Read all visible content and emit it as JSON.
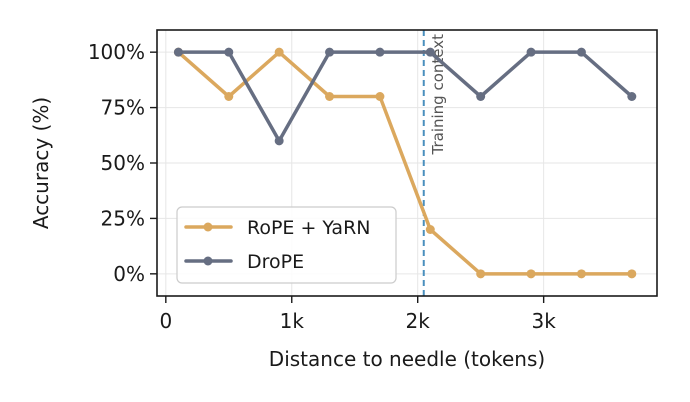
{
  "chart_data": {
    "type": "line",
    "title": "",
    "xlabel": "Distance to needle (tokens)",
    "ylabel": "Accuracy (%)",
    "xlim": [
      -70,
      3900
    ],
    "ylim": [
      -10,
      110
    ],
    "x_ticks": [
      {
        "value": 0,
        "label": "0"
      },
      {
        "value": 1000,
        "label": "1k"
      },
      {
        "value": 2000,
        "label": "2k"
      },
      {
        "value": 3000,
        "label": "3k"
      }
    ],
    "y_ticks": [
      {
        "value": 0,
        "label": "0%"
      },
      {
        "value": 25,
        "label": "25%"
      },
      {
        "value": 50,
        "label": "50%"
      },
      {
        "value": 75,
        "label": "75%"
      },
      {
        "value": 100,
        "label": "100%"
      }
    ],
    "grid": true,
    "legend_position": "lower-left",
    "vline": {
      "x": 2048,
      "label": "Training context",
      "color": "#4a8fbd"
    },
    "series": [
      {
        "name": "RoPE + YaRN",
        "color": "#dba85e",
        "x": [
          100,
          500,
          900,
          1300,
          1700,
          2100,
          2500,
          2900,
          3300,
          3700
        ],
        "y": [
          100,
          80,
          100,
          80,
          80,
          20,
          0,
          0,
          0,
          0
        ]
      },
      {
        "name": "DroPE",
        "color": "#666e82",
        "x": [
          100,
          500,
          900,
          1300,
          1700,
          2100,
          2500,
          2900,
          3300,
          3700
        ],
        "y": [
          100,
          100,
          60,
          100,
          100,
          100,
          80,
          100,
          100,
          80
        ]
      }
    ]
  }
}
